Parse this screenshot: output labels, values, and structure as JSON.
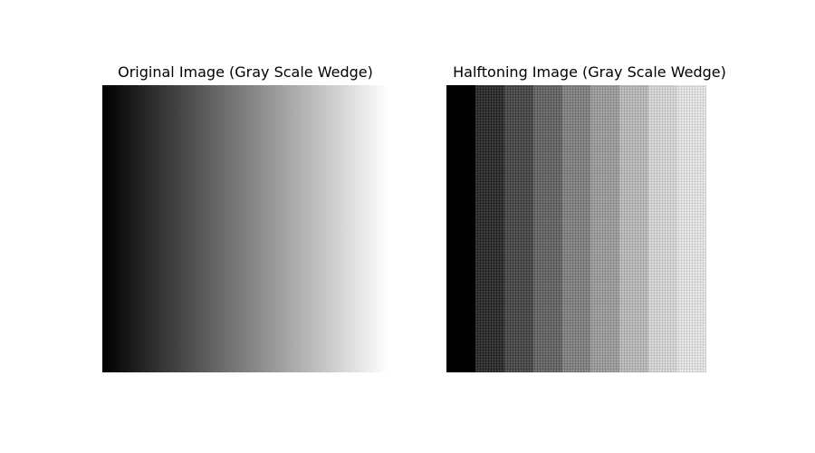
{
  "panels": [
    {
      "title": "Original Image (Gray Scale Wedge)",
      "kind": "continuous-gradient",
      "from_color": "#000000",
      "to_color": "#ffffff"
    },
    {
      "title": "Halftoning Image (Gray Scale Wedge)",
      "kind": "halftone-steps",
      "step_count": 9,
      "step_gray_levels": [
        0.0,
        0.125,
        0.25,
        0.375,
        0.5,
        0.625,
        0.75,
        0.875,
        0.94
      ]
    }
  ]
}
